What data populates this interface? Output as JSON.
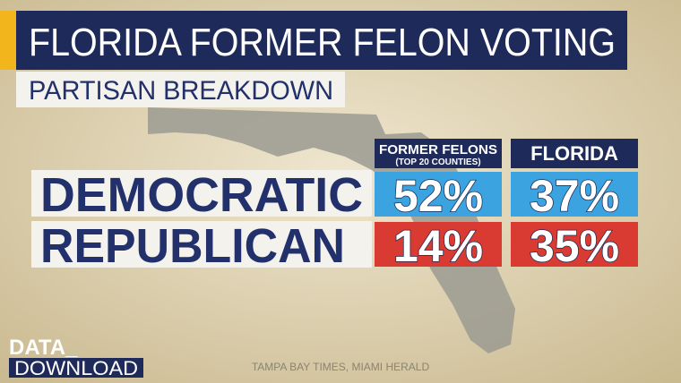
{
  "header": {
    "title": "FLORIDA FORMER FELON VOTING",
    "subtitle": "PARTISAN BREAKDOWN"
  },
  "table": {
    "columns": [
      {
        "title": "FORMER FELONS",
        "note": "(TOP 20 COUNTIES)"
      },
      {
        "title": "FLORIDA"
      }
    ],
    "rows": [
      {
        "label": "DEMOCRATIC",
        "cells": [
          "52%",
          "37%"
        ]
      },
      {
        "label": "REPUBLICAN",
        "cells": [
          "14%",
          "35%"
        ]
      }
    ]
  },
  "logo": {
    "line1": "DATA_",
    "line2": "DOWNLOAD"
  },
  "source": "TAMPA BAY TIMES, MIAMI HERALD"
}
